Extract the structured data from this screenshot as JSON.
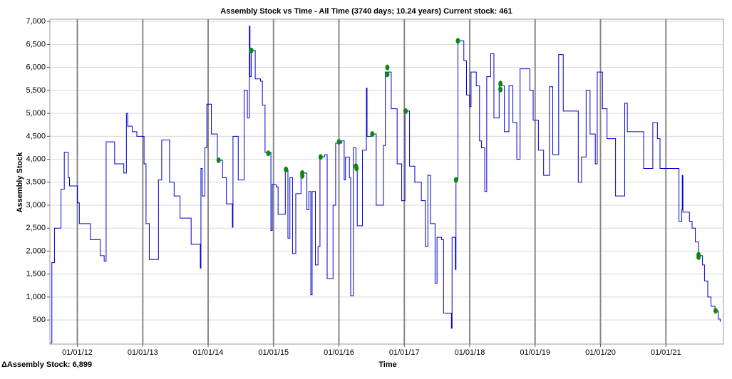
{
  "chart_data": {
    "type": "line",
    "title": "Assembly Stock vs Time - All Time (3740 days; 10.24 years) Current stock: 461",
    "x_label": "Time",
    "y_label": "Assembly Stock",
    "footer": "ΔAssembly Stock: 6,899",
    "xlim": [
      2011.58,
      2021.88
    ],
    "ylim": [
      -25,
      7050
    ],
    "xticks": [
      {
        "value": 2012,
        "label": "01/01/12"
      },
      {
        "value": 2013,
        "label": "01/01/13"
      },
      {
        "value": 2014,
        "label": "01/01/14"
      },
      {
        "value": 2015,
        "label": "01/01/15"
      },
      {
        "value": 2016,
        "label": "01/01/16"
      },
      {
        "value": 2017,
        "label": "01/01/17"
      },
      {
        "value": 2018,
        "label": "01/01/18"
      },
      {
        "value": 2019,
        "label": "01/01/19"
      },
      {
        "value": 2020,
        "label": "01/01/20"
      },
      {
        "value": 2021,
        "label": "01/01/21"
      }
    ],
    "yticks": [
      500,
      {
        "value": 1000,
        "label": "1,000"
      },
      {
        "value": 1500,
        "label": "1,500"
      },
      {
        "value": 2000,
        "label": "2,000"
      },
      {
        "value": 2500,
        "label": "2,500"
      },
      {
        "value": 3000,
        "label": "3,000"
      },
      {
        "value": 3500,
        "label": "3,500"
      },
      {
        "value": 4000,
        "label": "4,000"
      },
      {
        "value": 4500,
        "label": "4,500"
      },
      {
        "value": 5000,
        "label": "5,000"
      },
      {
        "value": 5500,
        "label": "5,500"
      },
      {
        "value": 6000,
        "label": "6,000"
      },
      {
        "value": 6500,
        "label": "6,500"
      },
      {
        "value": 7000,
        "label": "7,000"
      }
    ],
    "grid": true,
    "series": [
      {
        "color": "#0000cc",
        "step": true,
        "x": [
          2011.59,
          2011.61,
          2011.65,
          2011.75,
          2011.8,
          2011.86,
          2011.88,
          2012.0,
          2012.03,
          2012.2,
          2012.35,
          2012.41,
          2012.44,
          2012.57,
          2012.71,
          2012.75,
          2012.77,
          2012.84,
          2012.91,
          2013.02,
          2013.05,
          2013.1,
          2013.24,
          2013.29,
          2013.41,
          2013.48,
          2013.57,
          2013.74,
          2013.88,
          2013.89,
          2013.91,
          2013.95,
          2013.98,
          2014.05,
          2014.14,
          2014.22,
          2014.28,
          2014.37,
          2014.38,
          2014.46,
          2014.55,
          2014.6,
          2014.63,
          2014.64,
          2014.66,
          2014.72,
          2014.8,
          2014.83,
          2014.87,
          2014.96,
          2014.98,
          2015.04,
          2015.07,
          2015.18,
          2015.22,
          2015.25,
          2015.29,
          2015.34,
          2015.42,
          2015.51,
          2015.54,
          2015.57,
          2015.59,
          2015.64,
          2015.68,
          2015.71,
          2015.78,
          2015.82,
          2015.91,
          2015.95,
          2016.04,
          2016.08,
          2016.1,
          2016.16,
          2016.18,
          2016.22,
          2016.26,
          2016.28,
          2016.36,
          2016.42,
          2016.43,
          2016.49,
          2016.57,
          2016.68,
          2016.71,
          2016.8,
          2016.89,
          2016.96,
          2017.01,
          2017.08,
          2017.16,
          2017.26,
          2017.32,
          2017.36,
          2017.4,
          2017.47,
          2017.5,
          2017.57,
          2017.6,
          2017.72,
          2017.73,
          2017.78,
          2017.79,
          2017.82,
          2017.91,
          2017.95,
          2018.0,
          2018.02,
          2018.1,
          2018.15,
          2018.18,
          2018.23,
          2018.26,
          2018.32,
          2018.37,
          2018.45,
          2018.53,
          2018.6,
          2018.66,
          2018.72,
          2018.77,
          2018.92,
          2018.97,
          2019.05,
          2019.13,
          2019.22,
          2019.27,
          2019.36,
          2019.43,
          2019.66,
          2019.71,
          2019.78,
          2019.84,
          2019.92,
          2019.95,
          2020.03,
          2020.1,
          2020.23,
          2020.37,
          2020.41,
          2020.66,
          2020.8,
          2020.87,
          2020.91,
          2021.15,
          2021.2,
          2021.24,
          2021.25,
          2021.26,
          2021.36,
          2021.4,
          2021.45,
          2021.5,
          2021.56,
          2021.59,
          2021.64,
          2021.69,
          2021.75,
          2021.8,
          2021.83
        ],
        "values": [
          0,
          1750,
          2500,
          3350,
          4150,
          3600,
          3420,
          3050,
          2600,
          2250,
          1900,
          1780,
          4380,
          3900,
          3700,
          5000,
          4720,
          4600,
          4500,
          3900,
          2600,
          1820,
          3550,
          4420,
          3500,
          3200,
          2720,
          2150,
          1630,
          3800,
          3200,
          4250,
          5200,
          4550,
          3980,
          3600,
          3030,
          2520,
          4500,
          3550,
          5500,
          4900,
          6900,
          5800,
          6370,
          5750,
          5700,
          5180,
          4150,
          2450,
          3450,
          3400,
          2800,
          3780,
          2280,
          3600,
          1950,
          3250,
          3700,
          2900,
          3300,
          1050,
          3300,
          1700,
          2100,
          4050,
          4100,
          1400,
          3000,
          4350,
          4400,
          3550,
          4050,
          3600,
          1030,
          4250,
          3850,
          2550,
          4200,
          5550,
          4500,
          4550,
          3000,
          4300,
          5900,
          5100,
          3900,
          3100,
          5050,
          3850,
          3500,
          3100,
          2100,
          3650,
          2600,
          1300,
          2300,
          2250,
          650,
          320,
          2300,
          1600,
          3550,
          6580,
          6150,
          5400,
          5150,
          5900,
          5600,
          4400,
          4250,
          3300,
          5800,
          6300,
          4900,
          5600,
          4600,
          5600,
          4800,
          4000,
          5970,
          5500,
          4850,
          4200,
          3650,
          5580,
          4100,
          6280,
          5050,
          3500,
          4050,
          5500,
          4550,
          3900,
          5900,
          5100,
          4450,
          3200,
          5220,
          4600,
          3800,
          4800,
          4450,
          3800,
          3800,
          2650,
          2900,
          3650,
          2850,
          2650,
          2500,
          2200,
          1900,
          1700,
          1350,
          1000,
          800,
          700,
          520,
          461
        ]
      },
      {
        "color": "#118811",
        "marker": true,
        "x": [
          2014.16,
          2014.66,
          2014.92,
          2015.19,
          2015.44,
          2015.44,
          2015.72,
          2016.0,
          2016.26,
          2016.27,
          2016.51,
          2016.74,
          2016.74,
          2017.02,
          2017.79,
          2017.82,
          2018.47,
          2018.47,
          2021.5,
          2021.5,
          2021.76
        ],
        "values": [
          3980,
          6370,
          4130,
          3780,
          3700,
          3640,
          4050,
          4380,
          3850,
          3800,
          4550,
          6000,
          5850,
          5050,
          3550,
          6580,
          5650,
          5520,
          1920,
          1870,
          700
        ]
      }
    ]
  }
}
